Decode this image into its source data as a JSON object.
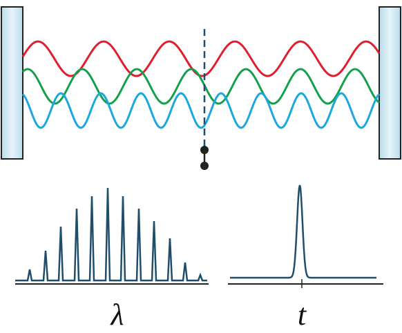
{
  "labels": {
    "wavelength": "λ",
    "time": "t"
  }
}
